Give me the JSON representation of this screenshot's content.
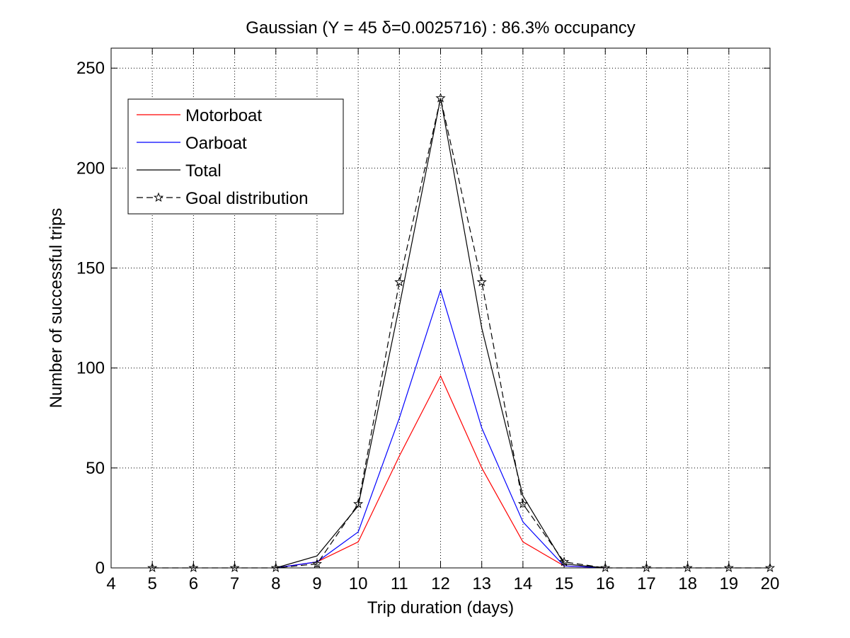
{
  "chart_data": {
    "type": "line",
    "title": "Gaussian (Y = 45 δ=0.0025716) : 86.3% occupancy",
    "xlabel": "Trip duration (days)",
    "ylabel": "Number of successful trips",
    "xlim": [
      4,
      20
    ],
    "ylim": [
      0,
      260
    ],
    "xticks": [
      4,
      5,
      6,
      7,
      8,
      9,
      10,
      11,
      12,
      13,
      14,
      15,
      16,
      17,
      18,
      19,
      20
    ],
    "yticks": [
      0,
      50,
      100,
      150,
      200,
      250
    ],
    "grid": true,
    "legend_position": "top-left",
    "series": [
      {
        "name": "Motorboat",
        "color": "#ff0000",
        "style": "solid",
        "marker": "none",
        "x": [
          8,
          9,
          10,
          11,
          12,
          13,
          14,
          15,
          16
        ],
        "y": [
          0,
          3,
          13,
          56,
          96,
          50,
          13,
          1,
          0
        ]
      },
      {
        "name": "Oarboat",
        "color": "#0000ff",
        "style": "solid",
        "marker": "none",
        "x": [
          8,
          9,
          10,
          11,
          12,
          13,
          14,
          15,
          16
        ],
        "y": [
          0,
          3,
          18,
          75,
          139,
          70,
          23,
          1,
          0
        ]
      },
      {
        "name": "Total",
        "color": "#000000",
        "style": "solid",
        "marker": "none",
        "x": [
          8,
          9,
          10,
          11,
          12,
          13,
          14,
          15,
          16
        ],
        "y": [
          0,
          6,
          31,
          131,
          235,
          120,
          36,
          2,
          0
        ]
      },
      {
        "name": "Goal distribution",
        "color": "#000000",
        "style": "dashed",
        "marker": "star",
        "x": [
          5,
          6,
          7,
          8,
          9,
          10,
          11,
          12,
          13,
          14,
          15,
          16,
          17,
          18,
          19,
          20
        ],
        "y": [
          0,
          0,
          0,
          0,
          2,
          32,
          143,
          235,
          143,
          32,
          3,
          0,
          0,
          0,
          0,
          0
        ]
      }
    ]
  }
}
